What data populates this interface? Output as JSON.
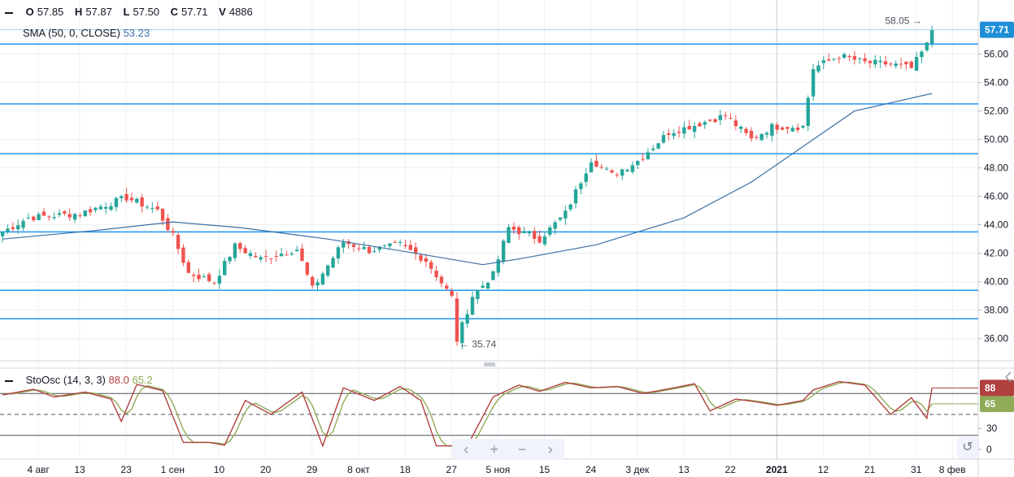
{
  "legend": {
    "ohlc_labels": {
      "o": "O",
      "h": "H",
      "l": "L",
      "c": "C",
      "v": "V"
    },
    "open": "57.85",
    "high": "57.87",
    "low": "57.50",
    "close": "57.71",
    "volume": "4886",
    "sma_label": "SMA (50, 0, CLOSE)",
    "sma_value": "53.23",
    "sto_label": "StoOsc (14, 3, 3)",
    "sto_k_value": "88.0",
    "sto_d_value": "65.2"
  },
  "colors": {
    "up": "#26a69a",
    "down": "#ef5350",
    "sma": "#3d6fa5",
    "hline": "#2196f3",
    "sto_k": "#b0413e",
    "sto_d": "#8fab58",
    "price_badge": "#1e8fd6",
    "grid": "#eceff2"
  },
  "chart_data": [
    {
      "type": "candlestick",
      "yaxis": {
        "min": 34.5,
        "max": 59.8,
        "ticks": [
          "36.00",
          "38.00",
          "40.00",
          "42.00",
          "44.00",
          "46.00",
          "48.00",
          "50.00",
          "52.00",
          "54.00",
          "56.00"
        ]
      },
      "xaxis": {
        "ticks": [
          "4 авг",
          "13",
          "23",
          "1 сен",
          "10",
          "20",
          "29",
          "8 окт",
          "18",
          "27",
          "5 ноя",
          "15",
          "24",
          "3 дек",
          "13",
          "22",
          "2021",
          "12",
          "21",
          "31",
          "8 фев"
        ]
      },
      "last_price": "57.71",
      "high_marker": "58.05",
      "low_marker": "35.74",
      "horizontal_levels": [
        56.7,
        52.5,
        49.0,
        43.5,
        39.4,
        37.4
      ],
      "path_knots": [
        [
          0,
          43.5
        ],
        [
          5,
          44.5
        ],
        [
          15,
          44.8
        ],
        [
          24,
          45.9
        ],
        [
          30,
          45.0
        ],
        [
          33,
          43.2
        ],
        [
          36,
          40.6
        ],
        [
          41,
          40.0
        ],
        [
          45,
          42.5
        ],
        [
          50,
          41.6
        ],
        [
          57,
          42.3
        ],
        [
          60,
          39.5
        ],
        [
          66,
          42.8
        ],
        [
          71,
          42.2
        ],
        [
          77,
          42.6
        ],
        [
          82,
          41.5
        ],
        [
          87,
          38.9
        ],
        [
          88,
          35.9
        ],
        [
          91,
          39.0
        ],
        [
          95,
          40.5
        ],
        [
          98,
          43.8
        ],
        [
          104,
          43.0
        ],
        [
          109,
          44.8
        ],
        [
          114,
          48.6
        ],
        [
          118,
          47.5
        ],
        [
          123,
          48.5
        ],
        [
          129,
          50.5
        ],
        [
          134,
          51.0
        ],
        [
          140,
          51.7
        ],
        [
          145,
          50.0
        ],
        [
          149,
          50.9
        ],
        [
          155,
          50.9
        ],
        [
          157,
          55.0
        ],
        [
          162,
          55.9
        ],
        [
          167,
          55.4
        ],
        [
          172,
          55.3
        ],
        [
          176,
          55.0
        ],
        [
          180,
          57.2
        ]
      ],
      "sma": [
        [
          0,
          43.0
        ],
        [
          18,
          43.6
        ],
        [
          33,
          44.2
        ],
        [
          46,
          43.8
        ],
        [
          63,
          43.0
        ],
        [
          80,
          42.0
        ],
        [
          93,
          41.2
        ],
        [
          100,
          41.6
        ],
        [
          115,
          42.6
        ],
        [
          132,
          44.5
        ],
        [
          145,
          47.0
        ],
        [
          155,
          49.5
        ],
        [
          165,
          52.0
        ],
        [
          180,
          53.23
        ]
      ]
    },
    {
      "type": "stochastic",
      "ylim": [
        0,
        100
      ],
      "ticks": [
        "0",
        "30",
        "65",
        "88"
      ],
      "levels": [
        80,
        50,
        20
      ],
      "k_knots": [
        [
          0,
          78
        ],
        [
          6,
          86
        ],
        [
          10,
          75
        ],
        [
          16,
          82
        ],
        [
          21,
          72
        ],
        [
          23,
          40
        ],
        [
          26,
          93
        ],
        [
          31,
          84
        ],
        [
          35,
          10
        ],
        [
          40,
          10
        ],
        [
          43,
          6
        ],
        [
          47,
          70
        ],
        [
          52,
          50
        ],
        [
          58,
          82
        ],
        [
          62,
          5
        ],
        [
          66,
          88
        ],
        [
          72,
          70
        ],
        [
          77,
          90
        ],
        [
          81,
          70
        ],
        [
          84,
          5
        ],
        [
          90,
          5
        ],
        [
          95,
          75
        ],
        [
          100,
          92
        ],
        [
          104,
          83
        ],
        [
          109,
          96
        ],
        [
          114,
          88
        ],
        [
          119,
          90
        ],
        [
          124,
          80
        ],
        [
          130,
          88
        ],
        [
          134,
          94
        ],
        [
          137,
          55
        ],
        [
          142,
          72
        ],
        [
          146,
          68
        ],
        [
          150,
          63
        ],
        [
          155,
          70
        ],
        [
          157,
          85
        ],
        [
          162,
          97
        ],
        [
          167,
          92
        ],
        [
          172,
          50
        ],
        [
          176,
          74
        ],
        [
          182,
          15
        ],
        [
          186,
          12
        ],
        [
          190,
          88
        ]
      ],
      "k_last": 88.0,
      "d_last": 65.2
    }
  ],
  "nav": {
    "prev": "‹",
    "zoom_in": "+",
    "zoom_out": "−",
    "next": "›",
    "reset": "↺"
  }
}
